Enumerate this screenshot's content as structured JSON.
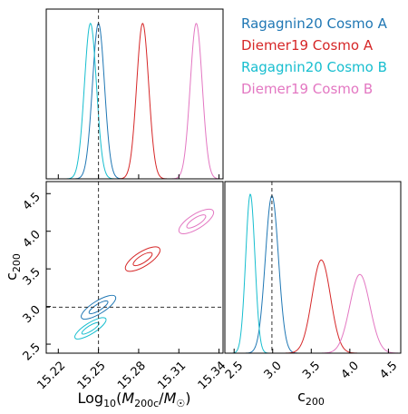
{
  "colors": {
    "ragagnin_a": "#1f77b4",
    "diemer_a": "#d62728",
    "ragagnin_b": "#17becf",
    "diemer_b": "#e377c2"
  },
  "legend": [
    "Ragagnin20 Cosmo A",
    "Diemer19 Cosmo A",
    "Ragagnin20 Cosmo B",
    "Diemer19 Cosmo B"
  ],
  "chart_data": {
    "type": "corner",
    "parameters": [
      {
        "label": "Log$_{10}$(M$_{200c}$/M$_\\odot$)",
        "ticks": [
          "15.22",
          "15.25",
          "15.28",
          "15.31",
          "15.34"
        ],
        "range": [
          15.211,
          15.343
        ]
      },
      {
        "label": "c$_{200}$",
        "ticks": [
          "2.5",
          "3.0",
          "3.5",
          "4.0",
          "4.5"
        ],
        "range": [
          2.38,
          4.66
        ]
      }
    ],
    "truth": {
      "logM": 15.25,
      "c200": 2.99
    },
    "series": [
      {
        "name": "Ragagnin20 Cosmo A",
        "color": "#1f77b4",
        "mean": [
          15.25,
          2.99
        ],
        "sigma": [
          0.0045,
          0.085
        ]
      },
      {
        "name": "Diemer19 Cosmo A",
        "color": "#d62728",
        "mean": [
          15.283,
          3.63
        ],
        "sigma": [
          0.0045,
          0.12
        ]
      },
      {
        "name": "Ragagnin20 Cosmo B",
        "color": "#17becf",
        "mean": [
          15.244,
          2.71
        ],
        "sigma": [
          0.0045,
          0.06
        ]
      },
      {
        "name": "Diemer19 Cosmo B",
        "color": "#e377c2",
        "mean": [
          15.323,
          4.13
        ],
        "sigma": [
          0.0045,
          0.13
        ]
      }
    ],
    "axis_labels": {
      "x_bottom_left": "Log10(M200c/M☉)",
      "y_left_lower": "c200",
      "x_bottom_right": "c200"
    }
  }
}
